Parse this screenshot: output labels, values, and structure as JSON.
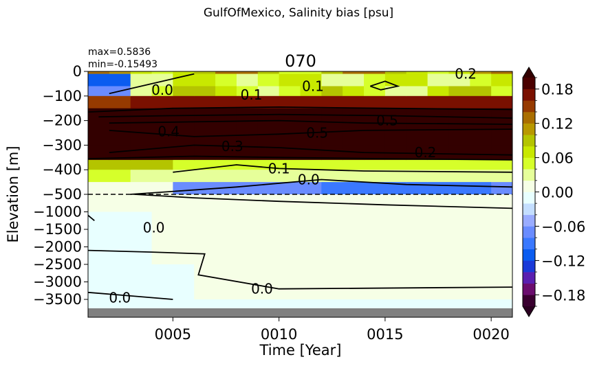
{
  "figure": {
    "suptitle": "GulfOfMexico, Salinity bias [psu]",
    "title": "070",
    "stats": {
      "max": "max=0.5836",
      "min": "min=-0.15493"
    }
  },
  "chart_data": {
    "type": "heatmap",
    "xlabel": "Time [Year]",
    "ylabel": "Elevation [m]",
    "x_tick_labels": [
      "0005",
      "0010",
      "0015",
      "0020"
    ],
    "x_ticks": [
      5,
      10,
      15,
      20
    ],
    "xlim": [
      1,
      21
    ],
    "y_scale": "piecewise: linear 0 to -500 (upper), linear -500 to bottom (lower)",
    "y_tick_labels_upper": [
      "0",
      "−100",
      "−200",
      "−300",
      "−400",
      "−500"
    ],
    "y_ticks_upper": [
      0,
      -100,
      -200,
      -300,
      -400,
      -500
    ],
    "y_tick_labels_lower": [
      "−1000",
      "−1500",
      "−2000",
      "−2500",
      "−3000",
      "−3500"
    ],
    "y_ticks_lower": [
      -1000,
      -1500,
      -2000,
      -2500,
      -3000,
      -3500
    ],
    "dashed_line_at": -500,
    "colorbar": {
      "levels": [
        -0.2,
        -0.18,
        -0.16,
        -0.14,
        -0.12,
        -0.1,
        -0.08,
        -0.06,
        -0.04,
        -0.02,
        0.0,
        0.02,
        0.04,
        0.06,
        0.08,
        0.1,
        0.12,
        0.14,
        0.16,
        0.18,
        0.2
      ],
      "colors": [
        "#3a0030",
        "#6b0d6e",
        "#5a1fb0",
        "#1a3ad8",
        "#0a5cf0",
        "#3a78ff",
        "#6a8cff",
        "#9aacff",
        "#c4deff",
        "#e8ffff",
        "#f6ffe6",
        "#e6ff9a",
        "#d6ff2a",
        "#c8e800",
        "#b4c400",
        "#b89800",
        "#aa6e00",
        "#963a00",
        "#7a1000",
        "#4a0000"
      ],
      "tick_labels": [
        "−0.18",
        "−0.12",
        "−0.06",
        "0.00",
        "0.06",
        "0.12",
        "0.18"
      ],
      "ticks": [
        -0.18,
        -0.12,
        -0.06,
        0.0,
        0.06,
        0.12,
        0.18
      ],
      "extend": "both"
    },
    "contours": [
      {
        "level": "0.0",
        "label": "0.0",
        "data_x": 9.2,
        "data_y": -3200
      },
      {
        "level": "0.0",
        "label": "0.0",
        "data_x": 2.5,
        "data_y": -3450
      },
      {
        "level": "0.0",
        "label": "0.0",
        "data_x": 4.1,
        "data_y": -1450
      },
      {
        "level": "0.0",
        "label": "0.0",
        "data_x": 11.4,
        "data_y": -440
      },
      {
        "level": "0.1",
        "label": "0.1",
        "data_x": 10.0,
        "data_y": -395
      },
      {
        "level": "0.1",
        "label": "0.1",
        "data_x": 8.7,
        "data_y": -95
      },
      {
        "level": "0.2",
        "label": "0.2",
        "data_x": 16.9,
        "data_y": -330
      },
      {
        "level": "0.3",
        "label": "0.3",
        "data_x": 7.8,
        "data_y": -305
      },
      {
        "level": "0.4",
        "label": "0.4",
        "data_x": 4.8,
        "data_y": -245
      },
      {
        "level": "0.5",
        "label": "0.5",
        "data_x": 11.8,
        "data_y": -250
      },
      {
        "level": "0.5",
        "label": "0.5",
        "data_x": 15.1,
        "data_y": -200
      },
      {
        "level": "0.0",
        "label": "0.0",
        "data_x": 4.5,
        "data_y": -75
      },
      {
        "level": "0.2",
        "label": "0.2",
        "data_x": 18.8,
        "data_y": -10
      },
      {
        "level": "0.1",
        "label": "0.1",
        "data_x": 11.6,
        "data_y": -60
      }
    ]
  }
}
